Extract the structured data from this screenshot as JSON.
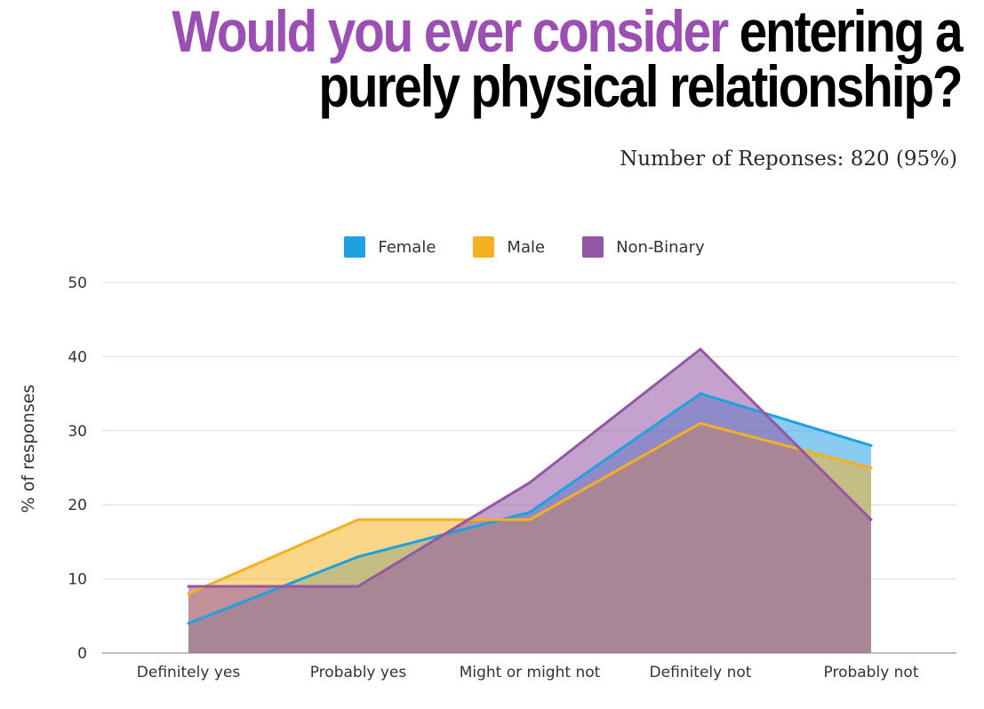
{
  "header": {
    "title_accent": "Would you ever consider",
    "title_rest_line1": "entering a",
    "title_line2": "purely physical relationship?",
    "subtitle": "Number of Reponses: 820 (95%)"
  },
  "chart_data": {
    "type": "area",
    "title": "Would you ever consider entering a purely physical relationship?",
    "xlabel": "",
    "ylabel": "% of responses",
    "ylim": [
      0,
      50
    ],
    "yticks": [
      0,
      10,
      20,
      30,
      40,
      50
    ],
    "grid": true,
    "legend_position": "top-center",
    "categories": [
      "Definitely yes",
      "Probably yes",
      "Might or might not",
      "Definitely not",
      "Probably not"
    ],
    "series": [
      {
        "name": "Female",
        "color": "#1fa0e0",
        "fill": "rgba(40,160,230,0.55)",
        "values": [
          4,
          13,
          19,
          35,
          28
        ]
      },
      {
        "name": "Male",
        "color": "#f5b022",
        "fill": "rgba(245,180,40,0.55)",
        "values": [
          8,
          18,
          18,
          31,
          25
        ]
      },
      {
        "name": "Non-Binary",
        "color": "#9257a5",
        "fill": "rgba(146,87,165,0.55)",
        "values": [
          9,
          9,
          23,
          41,
          18
        ]
      }
    ]
  }
}
